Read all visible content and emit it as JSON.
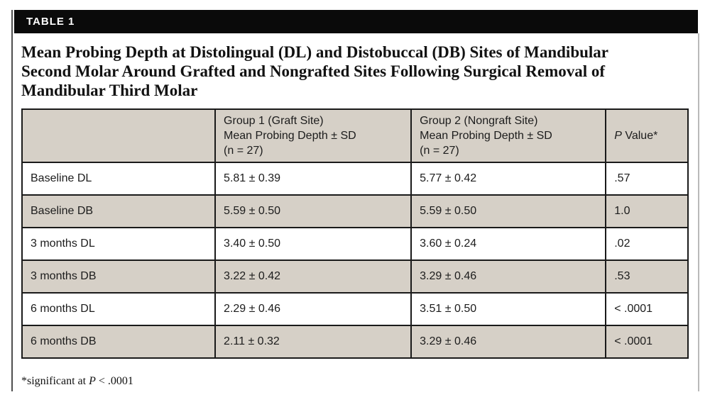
{
  "colors": {
    "header_bar": "#0a0a0a",
    "shaded_row": "#d6d0c7",
    "table_border": "#1a1a1a",
    "left_rule": "#4f4f4f",
    "right_rule": "#b9b9b9",
    "page_bg": "#ffffff",
    "bar_text": "#ffffff"
  },
  "table_label": "TABLE 1",
  "title": {
    "lines": [
      "Mean Probing Depth at Distolingual (DL) and Distobuccal (DB) Sites of Mandibular",
      "Second Molar Around Grafted and Nongrafted Sites Following Surgical Removal of",
      "Mandibular Third Molar"
    ]
  },
  "table": {
    "header": {
      "row_label": "",
      "group1": "Group 1 (Graft Site)\nMean Probing Depth ± SD\n(n = 27)",
      "group2": "Group 2 (Nongraft Site)\nMean Probing Depth ± SD\n(n = 27)",
      "p_italic": "P",
      "p_rest": " Value*"
    },
    "rows": [
      {
        "label": "Baseline DL",
        "group1": "5.81 ± 0.39",
        "group2": "5.77 ± 0.42",
        "p": ".57"
      },
      {
        "label": "Baseline DB",
        "group1": "5.59 ± 0.50",
        "group2": "5.59 ± 0.50",
        "p": "1.0"
      },
      {
        "label": "3 months DL",
        "group1": "3.40 ± 0.50",
        "group2": "3.60 ± 0.24",
        "p": ".02"
      },
      {
        "label": "3 months DB",
        "group1": "3.22 ± 0.42",
        "group2": "3.29 ± 0.46",
        "p": ".53"
      },
      {
        "label": "6 months DL",
        "group1": "2.29 ± 0.46",
        "group2": "3.51 ± 0.50",
        "p": "< .0001"
      },
      {
        "label": "6 months DB",
        "group1": "2.11 ± 0.32",
        "group2": "3.29 ± 0.46",
        "p": "< .0001"
      }
    ]
  },
  "footnote": {
    "prefix": "*significant at ",
    "p": "P",
    "suffix": " < .0001"
  }
}
